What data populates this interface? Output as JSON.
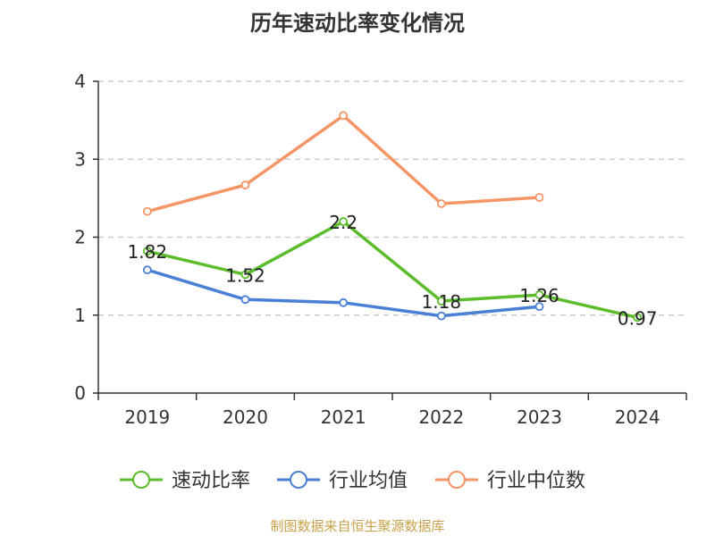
{
  "chart_data": {
    "type": "line",
    "title": "历年速动比率变化情况",
    "categories": [
      "2019",
      "2020",
      "2021",
      "2022",
      "2023",
      "2024"
    ],
    "yticks": [
      "0",
      "1",
      "2",
      "3",
      "4"
    ],
    "ylim": [
      0,
      4
    ],
    "grid": true,
    "legend_position": "bottom",
    "series": [
      {
        "name": "速动比率",
        "color": "#5bbd2b",
        "values": [
          1.82,
          1.52,
          2.2,
          1.18,
          1.26,
          0.97
        ],
        "labels": [
          "1.82",
          "1.52",
          "2.2",
          "1.18",
          "1.26",
          "0.97"
        ]
      },
      {
        "name": "行业均值",
        "color": "#4a7fd6",
        "values": [
          1.58,
          1.2,
          1.16,
          0.99,
          1.11,
          null
        ]
      },
      {
        "name": "行业中位数",
        "color": "#f59565",
        "values": [
          2.33,
          2.67,
          3.56,
          2.43,
          2.51,
          null
        ]
      }
    ]
  },
  "source": "制图数据来自恒生聚源数据库"
}
